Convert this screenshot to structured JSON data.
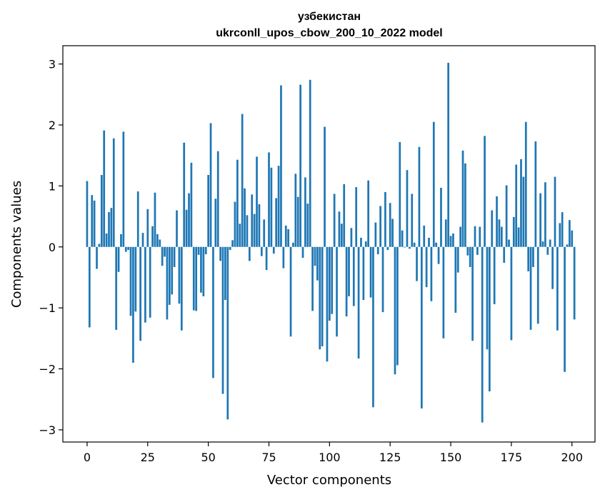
{
  "chart_data": {
    "type": "bar",
    "title": "узбекистан",
    "subtitle": "ukrconll_upos_cbow_200_10_2022 model",
    "xlabel": "Vector components",
    "ylabel": "Components values",
    "xlim": [
      -10,
      209.5
    ],
    "ylim": [
      -3.2,
      3.3
    ],
    "xticks": [
      0,
      25,
      50,
      75,
      100,
      125,
      150,
      175,
      200
    ],
    "xtick_labels": [
      "0",
      "25",
      "50",
      "75",
      "100",
      "125",
      "150",
      "175",
      "200"
    ],
    "yticks": [
      3,
      2,
      1,
      0,
      -1,
      -2,
      -3
    ],
    "ytick_labels": [
      "3",
      "2",
      "1",
      "0",
      "−1",
      "−2",
      "−3"
    ],
    "grid": false,
    "bar_color": "#1f77b4",
    "values": [
      1.08,
      -1.32,
      0.85,
      0.76,
      -0.36,
      0.05,
      1.18,
      1.91,
      0.22,
      0.57,
      0.64,
      1.78,
      -1.36,
      -0.41,
      0.21,
      1.89,
      -0.08,
      -0.05,
      -1.13,
      -1.9,
      -1.06,
      0.91,
      -1.54,
      0.23,
      -1.24,
      0.62,
      -1.16,
      0.34,
      0.89,
      0.21,
      0.12,
      -0.31,
      -0.16,
      -1.19,
      -0.95,
      -0.78,
      -0.33,
      0.6,
      -0.93,
      -1.37,
      1.71,
      0.61,
      0.88,
      1.38,
      -1.04,
      -1.05,
      -0.13,
      -0.75,
      -0.81,
      -0.12,
      1.18,
      2.03,
      -2.15,
      0.79,
      1.57,
      -0.23,
      -2.41,
      -0.87,
      -2.83,
      -0.05,
      0.11,
      0.74,
      1.43,
      0.38,
      2.18,
      0.96,
      0.52,
      -0.23,
      0.86,
      0.54,
      1.48,
      0.7,
      -0.15,
      0.45,
      -0.38,
      1.55,
      1.3,
      -0.11,
      0.8,
      1.33,
      2.65,
      -0.35,
      0.35,
      0.29,
      -1.47,
      0.07,
      1.2,
      0.82,
      2.66,
      -0.18,
      1.14,
      0.71,
      2.74,
      -1.05,
      -0.31,
      -0.55,
      -1.68,
      -1.63,
      1.97,
      -1.88,
      -1.21,
      -1.1,
      0.87,
      -1.47,
      0.58,
      0.38,
      1.03,
      -1.14,
      -0.81,
      0.31,
      -0.97,
      0.98,
      -1.83,
      0.15,
      -0.87,
      0.09,
      1.09,
      -0.83,
      -2.63,
      0.4,
      -0.12,
      0.67,
      -1.07,
      0.9,
      -0.05,
      0.72,
      0.46,
      -2.09,
      -1.94,
      1.72,
      0.27,
      -0.01,
      1.26,
      -0.03,
      0.87,
      0.07,
      -0.56,
      1.64,
      -2.65,
      0.35,
      -0.66,
      0.15,
      -0.89,
      2.05,
      0.07,
      -0.28,
      0.97,
      -1.5,
      0.45,
      3.02,
      0.18,
      0.22,
      -1.08,
      -0.42,
      0.33,
      1.58,
      1.37,
      -0.14,
      -0.33,
      -1.54,
      0.34,
      -0.13,
      0.33,
      -2.88,
      1.82,
      -1.68,
      -2.37,
      0.6,
      -0.94,
      0.83,
      0.45,
      0.33,
      -0.26,
      1.01,
      0.12,
      -1.53,
      0.49,
      1.35,
      0.32,
      1.44,
      1.15,
      2.05,
      -0.4,
      -1.36,
      -0.33,
      1.73,
      -1.26,
      0.88,
      0.09,
      1.06,
      -0.13,
      0.12,
      -0.69,
      1.15,
      -1.37,
      0.39,
      0.57,
      -2.05,
      0.04,
      0.44,
      0.27,
      -1.19
    ]
  }
}
